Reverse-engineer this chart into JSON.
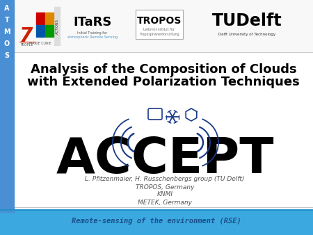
{
  "title_line1": "Analysis of the Composition of Clouds",
  "title_line2": "with Extended Polarization Techniques",
  "author_line1": "L. Pfitzenmaier, H. Russchenbergs group (TU Delft)",
  "author_line2": "TROPOS, Germany",
  "author_line3": "KNMI",
  "author_line4": "METEK, Germany",
  "footer_text": "Remote-sensing of the environment (RSE)",
  "atmos_text": [
    "A",
    "T",
    "M",
    "O",
    "S"
  ],
  "bg_color": "#ffffff",
  "left_bar_color": "#4A8FD4",
  "footer_bg": "#3BA8E0",
  "footer_text_color": "#1a4f8a",
  "footer_line_color": "#2090cc",
  "title_color": "#000000",
  "author_color": "#555555",
  "accept_color": "#000000",
  "blue_deco": "#1a3a8a",
  "header_line_color": "#cccccc"
}
